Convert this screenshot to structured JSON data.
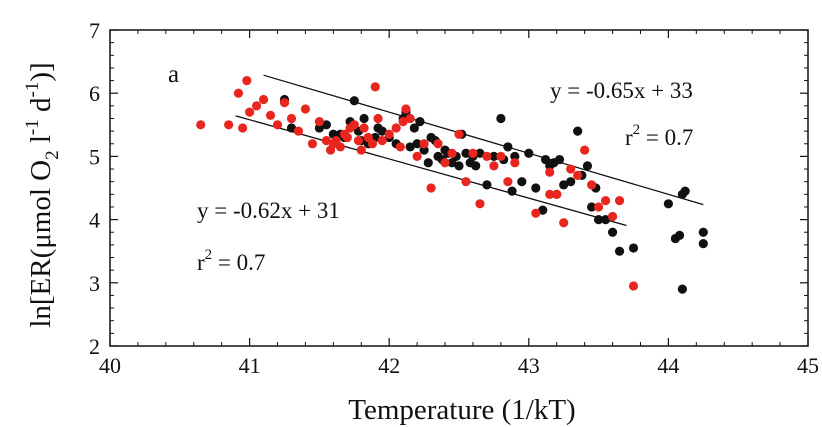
{
  "chart_data": {
    "type": "scatter",
    "panel_label": "a",
    "xlabel": "Temperature (1/kT)",
    "ylabel_parts": {
      "pre": "ln[ER(μmol O",
      "sub": "2",
      "mid1": " l",
      "sup1": "-1",
      "mid2": " d",
      "sup2": "-1",
      "post": ")]"
    },
    "xlim": [
      40,
      45
    ],
    "ylim": [
      2,
      7
    ],
    "xticks": [
      "40",
      "41",
      "42",
      "43",
      "44",
      "45"
    ],
    "yticks": [
      "2",
      "3",
      "4",
      "5",
      "6",
      "7"
    ],
    "colors": {
      "black_series": "#111111",
      "red_series": "#e8261f"
    },
    "series": [
      {
        "color": "black",
        "points": [
          [
            41.25,
            5.9
          ],
          [
            41.3,
            5.45
          ],
          [
            41.5,
            5.45
          ],
          [
            41.55,
            5.5
          ],
          [
            41.6,
            5.35
          ],
          [
            41.65,
            5.35
          ],
          [
            41.68,
            5.3
          ],
          [
            41.72,
            5.55
          ],
          [
            41.75,
            5.88
          ],
          [
            41.78,
            5.4
          ],
          [
            41.8,
            5.25
          ],
          [
            41.82,
            5.6
          ],
          [
            41.85,
            5.2
          ],
          [
            41.9,
            5.3
          ],
          [
            41.92,
            5.45
          ],
          [
            41.95,
            5.4
          ],
          [
            42.0,
            5.3
          ],
          [
            42.05,
            5.2
          ],
          [
            42.1,
            5.6
          ],
          [
            42.12,
            5.7
          ],
          [
            42.15,
            5.15
          ],
          [
            42.18,
            5.45
          ],
          [
            42.2,
            5.2
          ],
          [
            42.22,
            5.55
          ],
          [
            42.25,
            5.1
          ],
          [
            42.28,
            4.9
          ],
          [
            42.3,
            5.3
          ],
          [
            42.33,
            5.25
          ],
          [
            42.35,
            5.0
          ],
          [
            42.38,
            4.95
          ],
          [
            42.4,
            5.1
          ],
          [
            42.42,
            5.05
          ],
          [
            42.45,
            4.9
          ],
          [
            42.48,
            5.0
          ],
          [
            42.5,
            4.85
          ],
          [
            42.52,
            5.35
          ],
          [
            42.55,
            5.05
          ],
          [
            42.58,
            4.9
          ],
          [
            42.6,
            5.0
          ],
          [
            42.62,
            4.85
          ],
          [
            42.65,
            5.05
          ],
          [
            42.7,
            4.55
          ],
          [
            42.75,
            5.0
          ],
          [
            42.8,
            5.6
          ],
          [
            42.82,
            4.95
          ],
          [
            42.85,
            5.15
          ],
          [
            42.88,
            4.45
          ],
          [
            42.9,
            5.0
          ],
          [
            42.95,
            4.6
          ],
          [
            43.0,
            5.05
          ],
          [
            43.05,
            4.5
          ],
          [
            43.1,
            4.15
          ],
          [
            43.12,
            4.95
          ],
          [
            43.15,
            4.85
          ],
          [
            43.18,
            4.9
          ],
          [
            43.2,
            4.4
          ],
          [
            43.22,
            4.95
          ],
          [
            43.25,
            4.55
          ],
          [
            43.3,
            4.6
          ],
          [
            43.35,
            5.4
          ],
          [
            43.38,
            4.7
          ],
          [
            43.42,
            4.85
          ],
          [
            43.45,
            4.2
          ],
          [
            43.48,
            4.5
          ],
          [
            43.5,
            4.0
          ],
          [
            43.55,
            4.0
          ],
          [
            43.6,
            3.8
          ],
          [
            43.65,
            3.5
          ],
          [
            43.75,
            3.55
          ],
          [
            44.0,
            4.25
          ],
          [
            44.05,
            3.7
          ],
          [
            44.08,
            3.75
          ],
          [
            44.1,
            4.4
          ],
          [
            44.12,
            4.45
          ],
          [
            44.1,
            2.9
          ],
          [
            44.25,
            3.8
          ],
          [
            44.25,
            3.62
          ]
        ],
        "fit": {
          "slope": -0.65,
          "intercept": 33,
          "x_range": [
            41.1,
            44.25
          ]
        },
        "equation": "y = -0.65x + 33",
        "r2_base": "r",
        "r2_sup": "2",
        "r2_value": " = 0.7"
      },
      {
        "color": "red",
        "points": [
          [
            40.65,
            5.5
          ],
          [
            40.85,
            5.5
          ],
          [
            40.92,
            6.0
          ],
          [
            40.95,
            5.45
          ],
          [
            40.98,
            6.2
          ],
          [
            41.0,
            5.7
          ],
          [
            41.05,
            5.8
          ],
          [
            41.1,
            5.9
          ],
          [
            41.15,
            5.65
          ],
          [
            41.2,
            5.5
          ],
          [
            41.25,
            5.85
          ],
          [
            41.3,
            5.6
          ],
          [
            41.35,
            5.4
          ],
          [
            41.4,
            5.75
          ],
          [
            41.45,
            5.2
          ],
          [
            41.5,
            5.55
          ],
          [
            41.55,
            5.25
          ],
          [
            41.58,
            5.1
          ],
          [
            41.6,
            5.2
          ],
          [
            41.62,
            5.25
          ],
          [
            41.65,
            5.15
          ],
          [
            41.68,
            5.35
          ],
          [
            41.7,
            5.3
          ],
          [
            41.72,
            5.45
          ],
          [
            41.75,
            5.5
          ],
          [
            41.78,
            5.25
          ],
          [
            41.8,
            5.1
          ],
          [
            41.82,
            5.45
          ],
          [
            41.85,
            5.3
          ],
          [
            41.88,
            5.2
          ],
          [
            41.9,
            6.1
          ],
          [
            41.92,
            5.6
          ],
          [
            41.95,
            5.25
          ],
          [
            42.0,
            5.35
          ],
          [
            42.05,
            5.45
          ],
          [
            42.08,
            5.15
          ],
          [
            42.1,
            5.55
          ],
          [
            42.12,
            5.75
          ],
          [
            42.15,
            5.6
          ],
          [
            42.2,
            5.0
          ],
          [
            42.25,
            5.2
          ],
          [
            42.3,
            4.5
          ],
          [
            42.35,
            5.2
          ],
          [
            42.4,
            4.9
          ],
          [
            42.45,
            5.05
          ],
          [
            42.5,
            5.35
          ],
          [
            42.55,
            4.6
          ],
          [
            42.6,
            5.05
          ],
          [
            42.65,
            4.25
          ],
          [
            42.7,
            5.0
          ],
          [
            42.75,
            4.85
          ],
          [
            42.8,
            5.0
          ],
          [
            42.85,
            4.6
          ],
          [
            42.9,
            4.9
          ],
          [
            43.05,
            4.1
          ],
          [
            43.15,
            4.4
          ],
          [
            43.15,
            4.75
          ],
          [
            43.2,
            4.4
          ],
          [
            43.25,
            3.95
          ],
          [
            43.3,
            4.8
          ],
          [
            43.35,
            4.7
          ],
          [
            43.4,
            5.1
          ],
          [
            43.45,
            4.55
          ],
          [
            43.5,
            4.2
          ],
          [
            43.55,
            4.3
          ],
          [
            43.6,
            4.05
          ],
          [
            43.65,
            4.3
          ],
          [
            43.75,
            2.95
          ]
        ],
        "fit": {
          "slope": -0.62,
          "intercept": 31,
          "x_range": [
            40.9,
            43.7
          ]
        },
        "equation": "y = -0.62x + 31",
        "r2_base": "r",
        "r2_sup": "2",
        "r2_value": " = 0.7"
      }
    ]
  }
}
